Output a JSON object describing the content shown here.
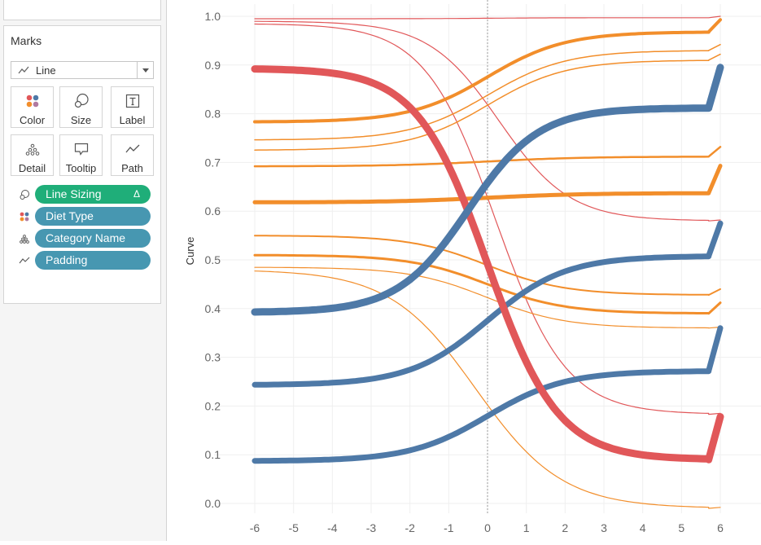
{
  "marks": {
    "title": "Marks",
    "mark_type": "Line",
    "buttons": [
      {
        "label": "Color",
        "icon": "color-icon"
      },
      {
        "label": "Size",
        "icon": "size-icon"
      },
      {
        "label": "Label",
        "icon": "label-icon"
      },
      {
        "label": "Detail",
        "icon": "detail-icon"
      },
      {
        "label": "Tooltip",
        "icon": "tooltip-icon"
      },
      {
        "label": "Path",
        "icon": "path-icon"
      }
    ],
    "pills": [
      {
        "label": "Line Sizing",
        "icon": "size-icon",
        "color": "#1fae79",
        "delta": "Δ"
      },
      {
        "label": "Diet Type",
        "icon": "color-icon",
        "color": "#4797b1"
      },
      {
        "label": "Category Name",
        "icon": "detail-icon",
        "color": "#4797b1"
      },
      {
        "label": "Padding",
        "icon": "path-icon",
        "color": "#4797b1"
      }
    ]
  },
  "chart_data": {
    "type": "line",
    "ylabel": "Curve",
    "xlim": [
      -6,
      6
    ],
    "ylim": [
      0.0,
      1.0
    ],
    "x_ticks": [
      "-6",
      "-5",
      "-4",
      "-3",
      "-2",
      "-1",
      "0",
      "1",
      "2",
      "3",
      "4",
      "5",
      "6"
    ],
    "y_ticks": [
      "0.0",
      "0.1",
      "0.2",
      "0.3",
      "0.4",
      "0.5",
      "0.6",
      "0.7",
      "0.8",
      "0.9",
      "1.0"
    ],
    "grid": true,
    "reference_line_x": 0,
    "colors": {
      "red": "#e15759",
      "orange": "#f28e2b",
      "blue": "#4e79a7"
    },
    "series": [
      {
        "color": "red",
        "width": 1.2,
        "start": 0.995,
        "end": 0.997,
        "tail": 1.0,
        "mid": 0,
        "k": 1.2
      },
      {
        "color": "red",
        "width": 1.2,
        "start": 0.99,
        "end": 0.58,
        "tail": 0.582,
        "mid": 0.3,
        "k": 1.1
      },
      {
        "color": "red",
        "width": 1.2,
        "start": 0.985,
        "end": 0.183,
        "tail": 0.185,
        "mid": 0.2,
        "k": 1.1
      },
      {
        "color": "red",
        "width": 9,
        "start": 0.893,
        "end": 0.09,
        "tail": 0.178,
        "mid": 0,
        "k": 1.1
      },
      {
        "color": "orange",
        "width": 4,
        "start": 0.783,
        "end": 0.968,
        "tail": 0.993,
        "mid": 0,
        "k": 1.0
      },
      {
        "color": "orange",
        "width": 1.5,
        "start": 0.746,
        "end": 0.93,
        "tail": 0.942,
        "mid": 0,
        "k": 1.0
      },
      {
        "color": "orange",
        "width": 1.5,
        "start": 0.725,
        "end": 0.91,
        "tail": 0.922,
        "mid": 0,
        "k": 1.0
      },
      {
        "color": "orange",
        "width": 2.5,
        "start": 0.692,
        "end": 0.712,
        "tail": 0.732,
        "mid": 0,
        "k": 0.8
      },
      {
        "color": "orange",
        "width": 5,
        "start": 0.618,
        "end": 0.637,
        "tail": 0.693,
        "mid": 0,
        "k": 0.8
      },
      {
        "color": "orange",
        "width": 2,
        "start": 0.55,
        "end": 0.428,
        "tail": 0.44,
        "mid": 0,
        "k": 1.0
      },
      {
        "color": "orange",
        "width": 3,
        "start": 0.51,
        "end": 0.39,
        "tail": 0.412,
        "mid": 0,
        "k": 1.0
      },
      {
        "color": "orange",
        "width": 1.2,
        "start": 0.485,
        "end": 0.36,
        "tail": 0.362,
        "mid": 0,
        "k": 1.0
      },
      {
        "color": "orange",
        "width": 1.2,
        "start": 0.48,
        "end": -0.01,
        "tail": -0.008,
        "mid": -0.3,
        "k": 0.9
      },
      {
        "color": "blue",
        "width": 9,
        "start": 0.392,
        "end": 0.812,
        "tail": 0.895,
        "mid": -0.5,
        "k": 1.1
      },
      {
        "color": "blue",
        "width": 7,
        "start": 0.243,
        "end": 0.508,
        "tail": 0.575,
        "mid": 0,
        "k": 1.0
      },
      {
        "color": "blue",
        "width": 7,
        "start": 0.087,
        "end": 0.272,
        "tail": 0.36,
        "mid": 0,
        "k": 1.0
      }
    ]
  }
}
